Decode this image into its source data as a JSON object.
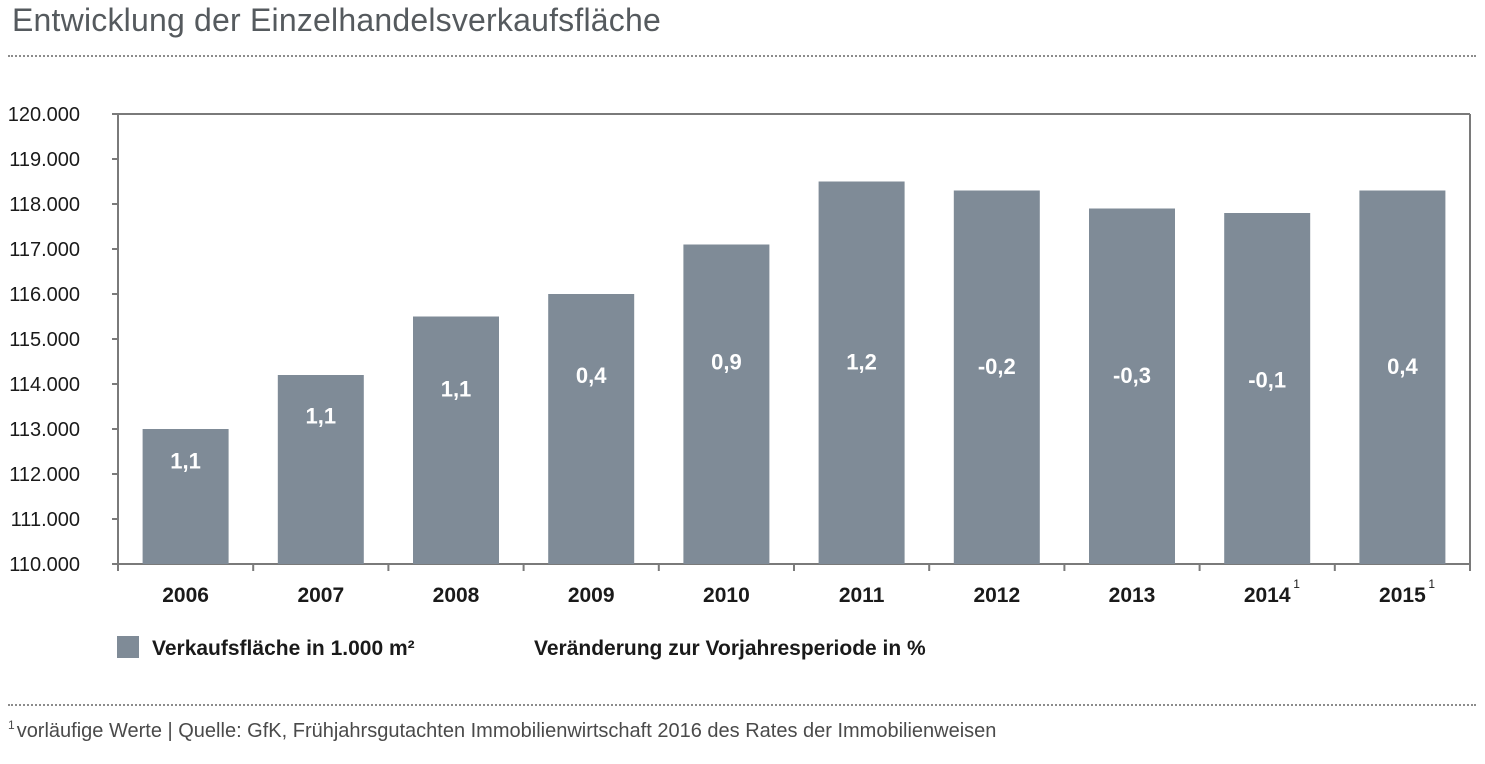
{
  "title": "Entwicklung der Einzelhandelsverkaufsfläche",
  "footnote": {
    "marker": "1",
    "text": "vorläufige Werte | Quelle: GfK, Frühjahrsgutachten Immobilienwirtschaft 2016 des Rates der Immobilienweisen"
  },
  "colors": {
    "bar": "#7f8b97",
    "bar_label": "#ffffff",
    "axis": "#7a7a7a",
    "text": "#1a1a1a"
  },
  "chart_data": {
    "type": "bar",
    "categories": [
      "2006",
      "2007",
      "2008",
      "2009",
      "2010",
      "2011",
      "2012",
      "2013",
      "2014",
      "2015"
    ],
    "category_superscripts": [
      "",
      "",
      "",
      "",
      "",
      "",
      "",
      "",
      "1",
      "1"
    ],
    "series": [
      {
        "name": "Verkaufsfläche in 1.000 m²",
        "values": [
          113000,
          114200,
          115500,
          116000,
          117100,
          118500,
          118300,
          117900,
          117800,
          118300
        ]
      }
    ],
    "change_labels": [
      "1,1",
      "1,1",
      "1,1",
      "0,4",
      "0,9",
      "1,2",
      "-0,2",
      "-0,3",
      "-0,1",
      "0,4"
    ],
    "change_label_values": [
      112300,
      113300,
      113900,
      114200,
      114500,
      114500,
      114400,
      114200,
      114100,
      114400
    ],
    "legend": [
      {
        "label": "Verkaufsfläche in 1.000 m²",
        "swatch": true
      },
      {
        "label": "Veränderung zur Vorjahresperiode in %",
        "swatch": false
      }
    ],
    "ylim": [
      110000,
      120000
    ],
    "yticks": [
      110000,
      111000,
      112000,
      113000,
      114000,
      115000,
      116000,
      117000,
      118000,
      119000,
      120000
    ],
    "ytick_labels": [
      "110.000",
      "111.000",
      "112.000",
      "113.000",
      "114.000",
      "115.000",
      "116.000",
      "117.000",
      "118.000",
      "119.000",
      "120.000"
    ],
    "legend_position": "bottom-left",
    "grid": false
  }
}
